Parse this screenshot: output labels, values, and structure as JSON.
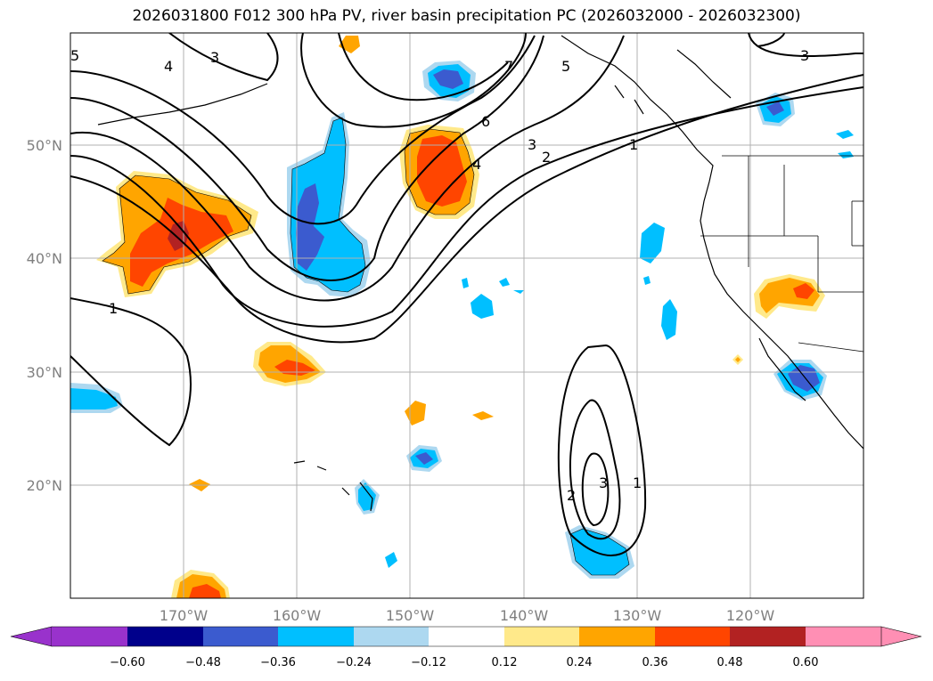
{
  "title": "2026031800 F012 300 hPa PV, river basin precipitation PC (2026032000 - 2026032300)",
  "map": {
    "lon_ticks": [
      "170°W",
      "160°W",
      "150°W",
      "140°W",
      "130°W",
      "120°W"
    ],
    "lat_ticks": [
      "50°N",
      "40°N",
      "30°N",
      "20°N"
    ],
    "grid": true
  },
  "contours": {
    "variable": "300 hPa PV",
    "color": "#000000",
    "labels": [
      "1",
      "1",
      "2",
      "3",
      "4",
      "6",
      "7",
      "5",
      "4",
      "3",
      "5",
      "3",
      "1",
      "2",
      "3"
    ]
  },
  "colorbar": {
    "ticks": [
      "−0.60",
      "−0.48",
      "−0.36",
      "−0.24",
      "−0.12",
      "0.12",
      "0.24",
      "0.36",
      "0.48",
      "0.60"
    ],
    "colors": [
      "#9932cc",
      "#00008b",
      "#3b5bcf",
      "#00bfff",
      "#add8f0",
      "#ffffff",
      "#ffe98a",
      "#ffa500",
      "#ff4500",
      "#b22222",
      "#ff8fb4"
    ]
  }
}
